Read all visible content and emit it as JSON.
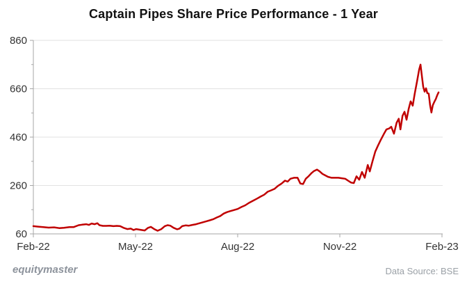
{
  "title": "Captain Pipes Share Price Performance - 1 Year",
  "footer": {
    "watermark": "equitymaster",
    "data_source": "Data Source: BSE"
  },
  "colors": {
    "line": "#c00000",
    "grid": "#e2e2e2",
    "axis": "#a6a6a6",
    "tick_label": "#333333",
    "title": "#111111",
    "watermark": "#8d939c",
    "data_source": "#9aa0a6",
    "background": "#ffffff"
  },
  "chart_data": {
    "type": "line",
    "title": "Captain Pipes Share Price Performance - 1 Year",
    "xlabel": "",
    "ylabel": "",
    "x_unit": "months since Feb-2022",
    "xlim": [
      0,
      12
    ],
    "ylim": [
      60,
      860
    ],
    "grid": true,
    "legend": false,
    "xticks": [
      {
        "pos": 0,
        "label": "Feb-22"
      },
      {
        "pos": 3,
        "label": "May-22"
      },
      {
        "pos": 6,
        "label": "Aug-22"
      },
      {
        "pos": 9,
        "label": "Nov-22"
      },
      {
        "pos": 12,
        "label": "Feb-23"
      }
    ],
    "yticks": [
      60,
      260,
      460,
      660,
      860
    ],
    "y_minor_ticks": [
      160,
      360,
      560,
      760
    ],
    "series": [
      {
        "name": "Captain Pipes share price (BSE)",
        "color": "#c00000",
        "points": [
          [
            0,
            92
          ],
          [
            0.14,
            90
          ],
          [
            0.29,
            88
          ],
          [
            0.45,
            86
          ],
          [
            0.61,
            87
          ],
          [
            0.76,
            84
          ],
          [
            0.9,
            85
          ],
          [
            1.06,
            88
          ],
          [
            1.18,
            88
          ],
          [
            1.33,
            96
          ],
          [
            1.43,
            98
          ],
          [
            1.55,
            100
          ],
          [
            1.63,
            97
          ],
          [
            1.71,
            103
          ],
          [
            1.8,
            100
          ],
          [
            1.88,
            104
          ],
          [
            1.94,
            96
          ],
          [
            2.04,
            93
          ],
          [
            2.14,
            93
          ],
          [
            2.24,
            94
          ],
          [
            2.35,
            92
          ],
          [
            2.45,
            93
          ],
          [
            2.55,
            92
          ],
          [
            2.65,
            85
          ],
          [
            2.76,
            80
          ],
          [
            2.86,
            82
          ],
          [
            2.94,
            76
          ],
          [
            3.02,
            80
          ],
          [
            3.14,
            77
          ],
          [
            3.27,
            74
          ],
          [
            3.37,
            85
          ],
          [
            3.45,
            89
          ],
          [
            3.55,
            80
          ],
          [
            3.65,
            73
          ],
          [
            3.76,
            80
          ],
          [
            3.86,
            92
          ],
          [
            3.94,
            96
          ],
          [
            4.02,
            94
          ],
          [
            4.12,
            85
          ],
          [
            4.22,
            79
          ],
          [
            4.29,
            82
          ],
          [
            4.37,
            92
          ],
          [
            4.47,
            95
          ],
          [
            4.57,
            94
          ],
          [
            4.67,
            97
          ],
          [
            4.78,
            100
          ],
          [
            4.88,
            104
          ],
          [
            4.98,
            108
          ],
          [
            5.08,
            112
          ],
          [
            5.18,
            116
          ],
          [
            5.29,
            121
          ],
          [
            5.39,
            128
          ],
          [
            5.49,
            134
          ],
          [
            5.59,
            144
          ],
          [
            5.69,
            150
          ],
          [
            5.78,
            154
          ],
          [
            5.88,
            158
          ],
          [
            6,
            163
          ],
          [
            6.12,
            172
          ],
          [
            6.22,
            178
          ],
          [
            6.33,
            188
          ],
          [
            6.45,
            197
          ],
          [
            6.57,
            206
          ],
          [
            6.67,
            214
          ],
          [
            6.78,
            222
          ],
          [
            6.88,
            234
          ],
          [
            6.98,
            240
          ],
          [
            7.08,
            246
          ],
          [
            7.18,
            258
          ],
          [
            7.29,
            268
          ],
          [
            7.39,
            280
          ],
          [
            7.47,
            276
          ],
          [
            7.55,
            288
          ],
          [
            7.65,
            292
          ],
          [
            7.76,
            292
          ],
          [
            7.84,
            268
          ],
          [
            7.92,
            266
          ],
          [
            8,
            288
          ],
          [
            8.08,
            298
          ],
          [
            8.16,
            310
          ],
          [
            8.24,
            320
          ],
          [
            8.33,
            326
          ],
          [
            8.41,
            318
          ],
          [
            8.49,
            308
          ],
          [
            8.57,
            302
          ],
          [
            8.65,
            296
          ],
          [
            8.76,
            292
          ],
          [
            8.86,
            292
          ],
          [
            8.96,
            292
          ],
          [
            9.06,
            290
          ],
          [
            9.16,
            288
          ],
          [
            9.24,
            280
          ],
          [
            9.33,
            272
          ],
          [
            9.41,
            270
          ],
          [
            9.49,
            298
          ],
          [
            9.57,
            284
          ],
          [
            9.65,
            316
          ],
          [
            9.73,
            292
          ],
          [
            9.82,
            345
          ],
          [
            9.88,
            318
          ],
          [
            9.96,
            360
          ],
          [
            10.04,
            400
          ],
          [
            10.12,
            425
          ],
          [
            10.2,
            448
          ],
          [
            10.29,
            472
          ],
          [
            10.37,
            492
          ],
          [
            10.45,
            496
          ],
          [
            10.51,
            503
          ],
          [
            10.59,
            474
          ],
          [
            10.67,
            520
          ],
          [
            10.73,
            536
          ],
          [
            10.78,
            492
          ],
          [
            10.84,
            548
          ],
          [
            10.9,
            565
          ],
          [
            10.96,
            532
          ],
          [
            11.02,
            576
          ],
          [
            11.08,
            608
          ],
          [
            11.14,
            590
          ],
          [
            11.2,
            640
          ],
          [
            11.27,
            692
          ],
          [
            11.33,
            740
          ],
          [
            11.37,
            760
          ],
          [
            11.41,
            712
          ],
          [
            11.45,
            668
          ],
          [
            11.49,
            648
          ],
          [
            11.53,
            662
          ],
          [
            11.57,
            642
          ],
          [
            11.61,
            640
          ],
          [
            11.65,
            592
          ],
          [
            11.69,
            562
          ],
          [
            11.73,
            592
          ],
          [
            11.78,
            607
          ],
          [
            11.82,
            618
          ],
          [
            11.86,
            633
          ],
          [
            11.9,
            645
          ]
        ]
      }
    ]
  }
}
